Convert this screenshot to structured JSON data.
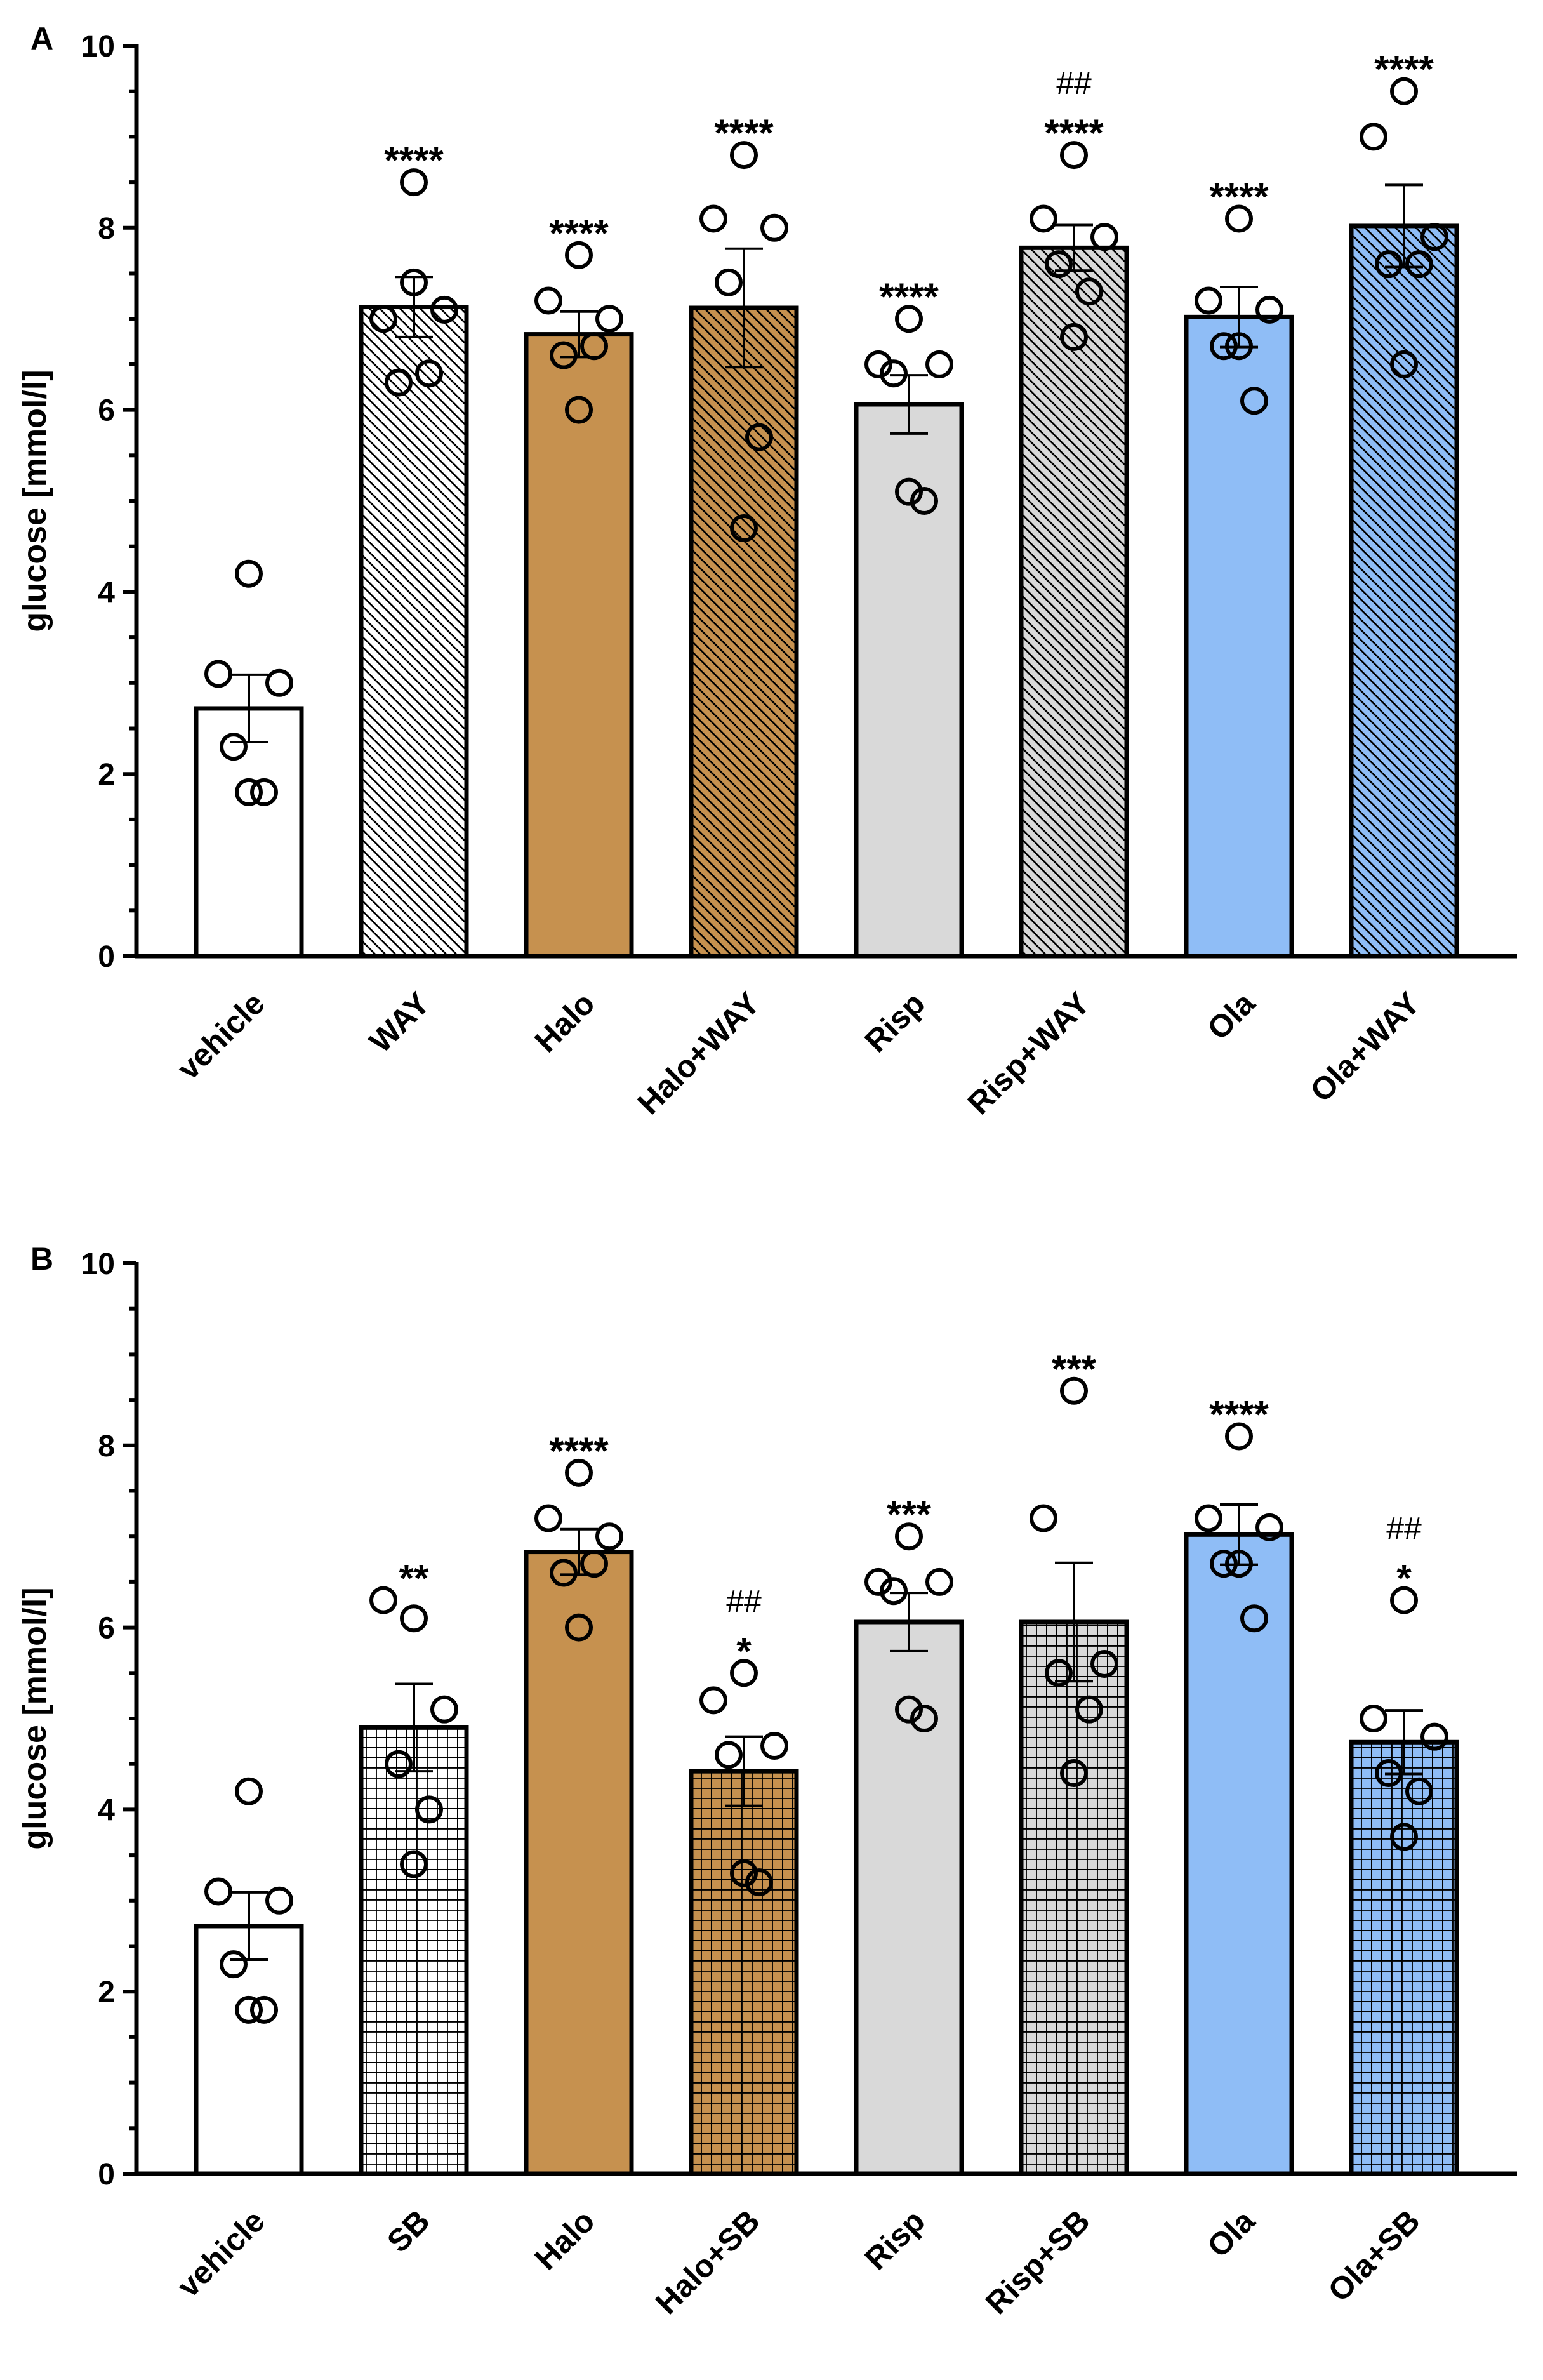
{
  "chart_data": [
    {
      "panel": "A",
      "type": "bar",
      "title": "",
      "xlabel": "",
      "ylabel": "glucose [mmol/l]",
      "ylim": [
        0,
        10
      ],
      "yticks": [
        "0",
        "2",
        "4",
        "6",
        "8",
        "10"
      ],
      "categories": [
        "vehicle",
        "WAY",
        "Halo",
        "Halo+WAY",
        "Risp",
        "Risp+WAY",
        "Ola",
        "Ola+WAY"
      ],
      "means": [
        2.72,
        7.13,
        6.83,
        7.12,
        6.06,
        7.78,
        7.02,
        8.02
      ],
      "sem": [
        0.37,
        0.33,
        0.25,
        0.65,
        0.32,
        0.25,
        0.33,
        0.45
      ],
      "points": [
        [
          4.2,
          3.1,
          3.0,
          2.3,
          1.8,
          1.8
        ],
        [
          8.5,
          7.0,
          7.1,
          6.3,
          6.4,
          7.4
        ],
        [
          7.7,
          7.2,
          7.0,
          6.6,
          6.7,
          6.0
        ],
        [
          8.8,
          8.1,
          8.0,
          7.4,
          5.7,
          4.7
        ],
        [
          7.0,
          6.5,
          6.5,
          6.4,
          5.0,
          5.1
        ],
        [
          8.8,
          8.1,
          7.9,
          7.6,
          7.3,
          6.8
        ],
        [
          8.1,
          7.2,
          7.1,
          6.7,
          6.1,
          6.7
        ],
        [
          9.5,
          9.0,
          7.9,
          7.6,
          7.6,
          6.5
        ]
      ],
      "fill_colors": [
        "#ffffff",
        "#ffffff",
        "#c6914f",
        "#c6914f",
        "#d9d9d9",
        "#d9d9d9",
        "#8fbdf6",
        "#8fbdf6"
      ],
      "patterns": [
        "none",
        "diagonal",
        "none",
        "diagonal",
        "none",
        "diagonal",
        "none",
        "diagonal"
      ],
      "annotations": [
        [],
        [
          "****"
        ],
        [
          "****"
        ],
        [
          "****"
        ],
        [
          "****"
        ],
        [
          "##",
          "****"
        ],
        [
          "****"
        ],
        [
          "****"
        ]
      ]
    },
    {
      "panel": "B",
      "type": "bar",
      "title": "",
      "xlabel": "",
      "ylabel": "glucose [mmol/l]",
      "ylim": [
        0,
        10
      ],
      "yticks": [
        "0",
        "2",
        "4",
        "6",
        "8",
        "10"
      ],
      "categories": [
        "vehicle",
        "SB",
        "Halo",
        "Halo+SB",
        "Risp",
        "Risp+SB",
        "Ola",
        "Ola+SB"
      ],
      "means": [
        2.72,
        4.9,
        6.83,
        4.42,
        6.06,
        6.06,
        7.02,
        4.74
      ],
      "sem": [
        0.37,
        0.48,
        0.25,
        0.38,
        0.32,
        0.65,
        0.33,
        0.35
      ],
      "points": [
        [
          4.2,
          3.1,
          3.0,
          2.3,
          1.8,
          1.8
        ],
        [
          6.1,
          6.3,
          5.1,
          4.5,
          4.0,
          3.4
        ],
        [
          7.7,
          7.2,
          7.0,
          6.6,
          6.7,
          6.0
        ],
        [
          5.5,
          5.2,
          4.7,
          4.6,
          3.2,
          3.3
        ],
        [
          7.0,
          6.5,
          6.5,
          6.4,
          5.0,
          5.1
        ],
        [
          8.6,
          7.2,
          5.6,
          5.5,
          5.1,
          4.4
        ],
        [
          8.1,
          7.2,
          7.1,
          6.7,
          6.1,
          6.7
        ],
        [
          6.3,
          5.0,
          4.8,
          4.4,
          4.2,
          3.7
        ]
      ],
      "fill_colors": [
        "#ffffff",
        "#ffffff",
        "#c6914f",
        "#c6914f",
        "#d9d9d9",
        "#d9d9d9",
        "#8fbdf6",
        "#8fbdf6"
      ],
      "patterns": [
        "none",
        "grid",
        "none",
        "grid",
        "none",
        "grid",
        "none",
        "grid"
      ],
      "annotations": [
        [],
        [
          "**"
        ],
        [
          "****"
        ],
        [
          "##",
          "*"
        ],
        [
          "***"
        ],
        [
          "***"
        ],
        [
          "****"
        ],
        [
          "##",
          "*"
        ]
      ]
    }
  ]
}
